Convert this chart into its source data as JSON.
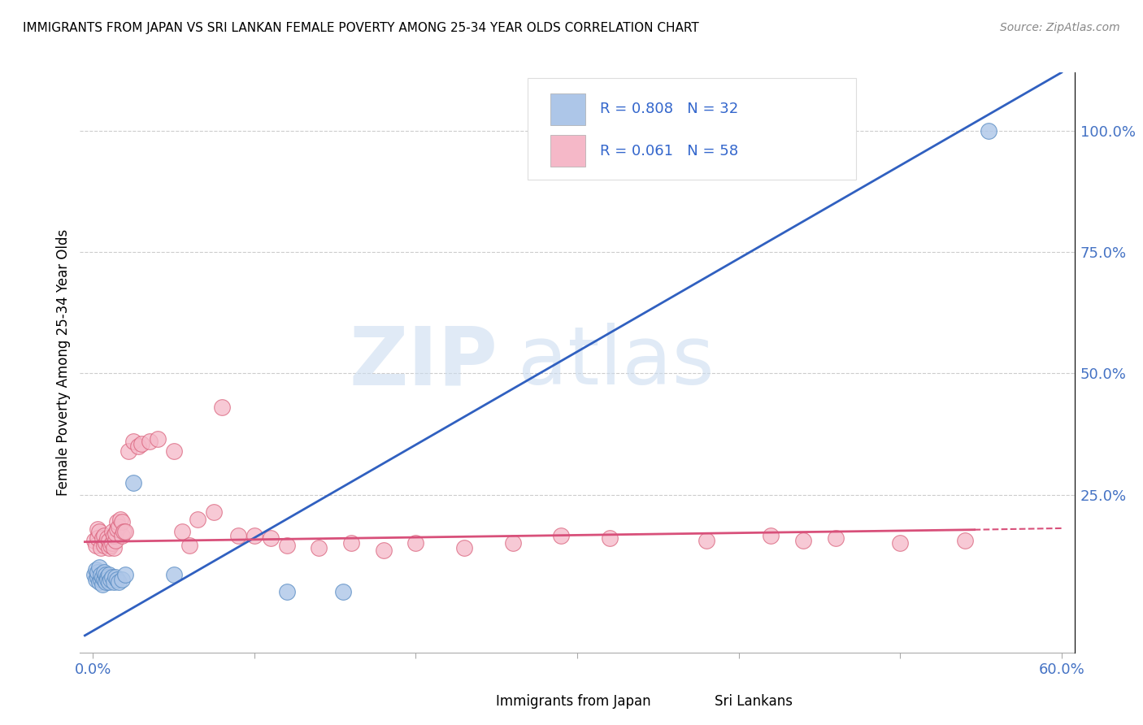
{
  "title": "IMMIGRANTS FROM JAPAN VS SRI LANKAN FEMALE POVERTY AMONG 25-34 YEAR OLDS CORRELATION CHART",
  "source": "Source: ZipAtlas.com",
  "ylabel": "Female Poverty Among 25-34 Year Olds",
  "right_yticklabels": [
    "25.0%",
    "50.0%",
    "75.0%",
    "100.0%"
  ],
  "right_ytick_vals": [
    0.25,
    0.5,
    0.75,
    1.0
  ],
  "legend_japan_r": "0.808",
  "legend_japan_n": "32",
  "legend_sri_r": "0.061",
  "legend_sri_n": "58",
  "legend_label1": "Immigrants from Japan",
  "legend_label2": "Sri Lankans",
  "japan_color": "#adc6e8",
  "japan_edge": "#5b8ec4",
  "sri_color": "#f5b8c8",
  "sri_edge": "#d9607a",
  "japan_scatter_x": [
    0.001,
    0.002,
    0.002,
    0.003,
    0.003,
    0.004,
    0.004,
    0.005,
    0.005,
    0.006,
    0.006,
    0.007,
    0.007,
    0.008,
    0.008,
    0.009,
    0.009,
    0.01,
    0.01,
    0.011,
    0.012,
    0.013,
    0.014,
    0.015,
    0.016,
    0.018,
    0.02,
    0.025,
    0.05,
    0.12,
    0.155,
    0.555
  ],
  "japan_scatter_y": [
    0.085,
    0.075,
    0.095,
    0.08,
    0.09,
    0.07,
    0.1,
    0.075,
    0.085,
    0.065,
    0.08,
    0.075,
    0.09,
    0.07,
    0.085,
    0.08,
    0.075,
    0.085,
    0.07,
    0.075,
    0.08,
    0.07,
    0.08,
    0.075,
    0.07,
    0.075,
    0.085,
    0.275,
    0.085,
    0.05,
    0.05,
    1.0
  ],
  "sri_scatter_x": [
    0.001,
    0.002,
    0.003,
    0.003,
    0.004,
    0.005,
    0.006,
    0.007,
    0.007,
    0.008,
    0.009,
    0.01,
    0.01,
    0.011,
    0.012,
    0.012,
    0.013,
    0.013,
    0.014,
    0.014,
    0.015,
    0.015,
    0.016,
    0.017,
    0.018,
    0.018,
    0.019,
    0.02,
    0.022,
    0.025,
    0.028,
    0.03,
    0.035,
    0.04,
    0.05,
    0.055,
    0.06,
    0.065,
    0.075,
    0.08,
    0.09,
    0.1,
    0.11,
    0.12,
    0.14,
    0.16,
    0.18,
    0.2,
    0.23,
    0.26,
    0.29,
    0.32,
    0.38,
    0.42,
    0.44,
    0.46,
    0.5,
    0.54
  ],
  "sri_scatter_y": [
    0.155,
    0.145,
    0.18,
    0.16,
    0.175,
    0.14,
    0.16,
    0.145,
    0.165,
    0.15,
    0.16,
    0.14,
    0.155,
    0.145,
    0.15,
    0.175,
    0.14,
    0.165,
    0.155,
    0.17,
    0.18,
    0.195,
    0.185,
    0.2,
    0.165,
    0.195,
    0.175,
    0.175,
    0.34,
    0.36,
    0.35,
    0.355,
    0.36,
    0.365,
    0.34,
    0.175,
    0.145,
    0.2,
    0.215,
    0.43,
    0.165,
    0.165,
    0.16,
    0.145,
    0.14,
    0.15,
    0.135,
    0.15,
    0.14,
    0.15,
    0.165,
    0.16,
    0.155,
    0.165,
    0.155,
    0.16,
    0.15,
    0.155
  ],
  "japan_trend_x0": -0.005,
  "japan_trend_x1": 0.6,
  "japan_trend_y0": -0.04,
  "japan_trend_y1": 1.12,
  "sri_trend_x0": -0.005,
  "sri_trend_x1": 0.546,
  "sri_trend_y0": 0.153,
  "sri_trend_y1": 0.178,
  "sri_trend_dash_x0": 0.546,
  "sri_trend_dash_x1": 0.6,
  "sri_trend_dash_y0": 0.178,
  "sri_trend_dash_y1": 0.181,
  "watermark_zip": "ZIP",
  "watermark_atlas": "atlas",
  "bg_color": "#ffffff",
  "xlim": [
    -0.008,
    0.608
  ],
  "ylim": [
    -0.075,
    1.12
  ],
  "trend_blue_color": "#3060c0",
  "trend_pink_color": "#d8507a"
}
